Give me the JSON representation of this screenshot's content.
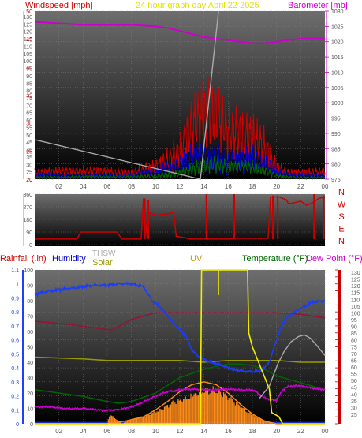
{
  "title": "24 hour graph day   April 22 2025",
  "colors": {
    "background": "#ffffff",
    "plot_top": "#6e6e6e",
    "plot_bottom": "#000000",
    "tick_text": "#555555",
    "windspeed": "#cc0000",
    "barometer": "#cc00cc",
    "rainfall": "#cc0000",
    "humidity": "#0000cc",
    "solar": "#999900",
    "thsw": "#aaaaaa",
    "uv": "#cc9900",
    "temperature": "#006600",
    "dew_point": "#cc00cc",
    "rain_axis": "#1f3fff",
    "temp_axis": "#cc0000"
  },
  "chart_data": [
    {
      "type": "line",
      "panel": "wind-barometer",
      "title": "24 hour graph day   April 22 2025",
      "ylabel_left": "Windspeed [mph]",
      "ylabel_right": "Barometer [mb]",
      "ylim_left": [
        20,
        50
      ],
      "ylim_right": [
        975,
        1030
      ],
      "left_ticks": [
        "20",
        "25",
        "30",
        "35",
        "40",
        "45",
        "50",
        "55",
        "60",
        "65",
        "70",
        "75",
        "80",
        "85",
        "90",
        "95",
        "100",
        "105",
        "110",
        "115",
        "120",
        "125",
        "130"
      ],
      "right_ticks": [
        "975",
        "980",
        "985",
        "990",
        "995",
        "1000",
        "1005",
        "1010",
        "1015",
        "1020",
        "1025",
        "1030"
      ],
      "x_ticks": [
        "02",
        "04",
        "06",
        "08",
        "10",
        "12",
        "14",
        "16",
        "18",
        "20",
        "22",
        "00"
      ],
      "grid": true,
      "series": [
        {
          "name": "Barometer [mb]",
          "axis": "right",
          "x": [
            0,
            2,
            4,
            6,
            8,
            10,
            11,
            12,
            13,
            14,
            15,
            16,
            17,
            18,
            19,
            20,
            21,
            22,
            23,
            24
          ],
          "values": [
            1026.5,
            1026,
            1025.5,
            1025.5,
            1025.5,
            1025,
            1024.5,
            1023.5,
            1022.5,
            1021.5,
            1021,
            1020.5,
            1020,
            1019.5,
            1019.5,
            1020,
            1020.5,
            1021,
            1021,
            1021
          ]
        },
        {
          "name": "Windspeed [mph]",
          "axis": "left",
          "x": [
            0,
            2,
            4,
            6,
            8,
            10,
            11,
            12,
            13,
            14,
            15,
            16,
            17,
            18,
            19,
            20,
            21,
            22,
            23,
            24
          ],
          "values": [
            1,
            1,
            1,
            1,
            1,
            2,
            3,
            4,
            7,
            8,
            8,
            6,
            6,
            6,
            5,
            2,
            1,
            1,
            1,
            1
          ]
        },
        {
          "name": "Windspeed [mph]",
          "axis": "left",
          "x": [
            0,
            2,
            4,
            6,
            8,
            10,
            11,
            12,
            13,
            14,
            15,
            16,
            17,
            18,
            19,
            20,
            21,
            22,
            23,
            24
          ],
          "values": [
            0.5,
            0.5,
            0.5,
            0.5,
            0.5,
            1,
            1.5,
            2,
            3,
            3.5,
            3.5,
            3,
            3,
            3,
            2.5,
            1,
            0.5,
            0.5,
            0.5,
            0.5
          ]
        },
        {
          "name": "Windspeed [mph]",
          "axis": "left",
          "x": [
            0,
            2,
            4,
            6,
            8,
            10,
            11,
            12,
            13,
            14,
            15,
            16,
            17,
            18,
            19,
            20,
            21,
            22,
            23,
            24
          ],
          "values": [
            0.3,
            0.3,
            0.3,
            0.3,
            0.3,
            0.5,
            0.8,
            1,
            1.5,
            2,
            2,
            1.5,
            1.5,
            1.5,
            1.2,
            0.5,
            0.3,
            0.3,
            0.3,
            0.3
          ]
        },
        {
          "name": "THSW",
          "axis": "left",
          "x": [
            0,
            0.1,
            13.7,
            15.2
          ],
          "values": [
            27,
            27,
            20,
            50
          ]
        }
      ]
    },
    {
      "type": "line",
      "panel": "wind-direction",
      "y_ticks": [
        "360",
        "270",
        "180",
        "90",
        "0"
      ],
      "direction_labels": [
        "N",
        "W",
        "S",
        "E",
        "N"
      ],
      "ylim": [
        0,
        360
      ],
      "x_ticks": [
        "02",
        "04",
        "06",
        "08",
        "10",
        "12",
        "14",
        "16",
        "18",
        "20",
        "22",
        "00"
      ],
      "series": [
        {
          "name": "Wind direction",
          "x": [
            0,
            3.5,
            3.8,
            6.8,
            7.2,
            8.8,
            9,
            9.3,
            9.5,
            10,
            11,
            11.5,
            11.7,
            13,
            14,
            16,
            16.5,
            19.3,
            19.5,
            20.2,
            20.8,
            21,
            21.5,
            22,
            22.5,
            23,
            23.5,
            24
          ],
          "values": [
            40,
            40,
            90,
            90,
            40,
            40,
            330,
            40,
            230,
            210,
            220,
            230,
            60,
            40,
            40,
            40,
            45,
            45,
            340,
            340,
            320,
            290,
            300,
            310,
            280,
            300,
            330,
            340
          ]
        }
      ]
    },
    {
      "type": "line",
      "panel": "rain-temp",
      "left_axis_label": "Rainfall (.in)",
      "other_labels": [
        "Humidity",
        "THSW",
        "Solar",
        "UV",
        "Temperature (°F)",
        "Dew Point (°F)"
      ],
      "left_ticks": [
        "0",
        "0.1",
        "0.2",
        "0.3",
        "0.4",
        "0.5",
        "0.6",
        "0.7",
        "0.8",
        "0.9",
        "1",
        "1.1"
      ],
      "hum_ticks": [
        "0",
        "10",
        "20",
        "30",
        "40",
        "50",
        "60",
        "70",
        "80",
        "90",
        "100"
      ],
      "right_ticks": [
        "25",
        "30",
        "35",
        "40",
        "45",
        "50",
        "55",
        "60",
        "65",
        "70",
        "75",
        "80",
        "85",
        "90",
        "95",
        "100",
        "105",
        "110",
        "115",
        "120",
        "125",
        "130"
      ],
      "ylim_left": [
        0,
        1.1
      ],
      "ylim_right": [
        20,
        130
      ],
      "x_ticks": [
        "02",
        "04",
        "06",
        "08",
        "10",
        "12",
        "14",
        "16",
        "18",
        "20",
        "22",
        "00"
      ],
      "grid": true,
      "series": [
        {
          "name": "Humidity",
          "axis": "hum",
          "x": [
            0,
            1,
            2,
            3,
            4,
            5,
            6,
            7,
            8,
            9,
            9.7,
            10.5,
            11.5,
            12.5,
            13,
            13.5,
            14.5,
            15.5,
            16.5,
            17.5,
            18.5,
            19,
            19.5,
            20,
            20.5,
            21,
            22,
            23,
            24
          ],
          "values": [
            84,
            86,
            87,
            88,
            89,
            90,
            90,
            91,
            91,
            89,
            80,
            75,
            65,
            57,
            48,
            44,
            40,
            38,
            35,
            34,
            34,
            36,
            42,
            55,
            65,
            70,
            75,
            79,
            80
          ]
        },
        {
          "name": "Dark red line",
          "axis": "right",
          "x": [
            0,
            3,
            6,
            6.5,
            7,
            8,
            9,
            10,
            12,
            16,
            20,
            22,
            24
          ],
          "values": [
            80,
            78,
            75,
            75,
            77,
            81,
            83,
            85,
            85,
            85,
            85,
            84,
            82
          ]
        },
        {
          "name": "Solar",
          "axis": "right",
          "x": [
            0,
            4,
            6,
            8,
            10,
            12,
            14,
            16,
            18,
            20,
            22,
            24
          ],
          "values": [
            59,
            58,
            57,
            57,
            57,
            57,
            56,
            57,
            57,
            57,
            56,
            56
          ]
        },
        {
          "name": "Temperature (°F)",
          "axis": "right",
          "x": [
            0,
            4,
            6,
            7,
            8,
            10,
            12,
            14,
            16,
            17,
            18,
            19,
            20,
            22,
            24
          ],
          "values": [
            40,
            36,
            33,
            32,
            33,
            38,
            47,
            52,
            55,
            55,
            54,
            52,
            48,
            44,
            40
          ]
        },
        {
          "name": "Dew Point (°F)",
          "axis": "right",
          "x": [
            0,
            6,
            7,
            8,
            9,
            10,
            11,
            12,
            13,
            14,
            15,
            16,
            17,
            18,
            19,
            19.5,
            20,
            20.5,
            21,
            22,
            23,
            24
          ],
          "values": [
            30,
            28,
            28,
            30,
            33,
            36,
            39,
            40,
            40,
            40,
            40,
            40,
            40,
            40,
            35,
            34,
            34,
            40,
            42,
            42,
            41,
            40
          ]
        },
        {
          "name": "UV",
          "axis": "left",
          "x": [
            0,
            6,
            7.5,
            9,
            10,
            11,
            12,
            13,
            14,
            15,
            16,
            17,
            18,
            19,
            20,
            24
          ],
          "values": [
            0,
            0,
            0.02,
            0.05,
            0.1,
            0.16,
            0.23,
            0.28,
            0.3,
            0.28,
            0.22,
            0.14,
            0.07,
            0.02,
            0,
            0
          ]
        },
        {
          "name": "Solar bars",
          "axis": "left",
          "x": [
            0,
            6,
            6.2,
            7.3,
            7.5,
            8,
            8.5,
            9,
            9.5,
            10,
            10.5,
            11,
            11.5,
            12,
            12.5,
            13,
            13.5,
            14,
            14.5,
            15,
            15.5,
            16,
            16.5,
            17,
            17.5,
            18,
            18.5,
            19,
            19.5,
            20,
            24
          ],
          "values": [
            0,
            0,
            0.08,
            0,
            0.02,
            0.04,
            0.05,
            0.06,
            0.08,
            0.1,
            0.12,
            0.15,
            0.18,
            0.2,
            0.22,
            0.25,
            0.27,
            0.28,
            0.28,
            0.27,
            0.25,
            0.22,
            0.18,
            0.15,
            0.11,
            0.08,
            0.05,
            0.03,
            0.01,
            0,
            0
          ]
        },
        {
          "name": "UV",
          "axis": "left",
          "x": [
            0,
            13.7,
            13.8,
            17.6,
            17.7,
            18,
            19.4,
            19.6,
            20.2,
            20.5,
            24
          ],
          "values": [
            0,
            0,
            1.1,
            1.1,
            0.65,
            0.55,
            0.25,
            0.08,
            0.05,
            0,
            0
          ]
        },
        {
          "name": "THSW",
          "axis": "right",
          "x": [
            18.6,
            19.4,
            20.1,
            20.6,
            21.2,
            21.8,
            22.3,
            22.8,
            23.3,
            24
          ],
          "values": [
            35,
            42,
            55,
            62,
            68,
            71,
            72,
            70,
            66,
            60
          ]
        },
        {
          "name": "Rainfall (.in)",
          "axis": "left",
          "x": [
            0,
            24
          ],
          "values": [
            0.01,
            0.01
          ]
        }
      ]
    }
  ]
}
